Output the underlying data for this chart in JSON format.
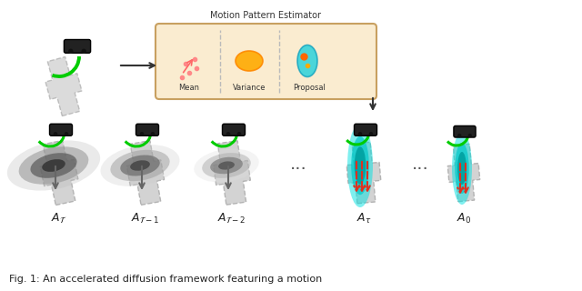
{
  "title": "Motion Pattern Estimator",
  "caption": "Fig. 1: An accelerated diffusion framework featuring a motion",
  "labels_bottom": [
    "$A_{\\mathcal{T}}$",
    "$A_{\\mathcal{T}-1}$",
    "$A_{\\mathcal{T}-2}$",
    "$A_{\\tau}$",
    "$A_0$"
  ],
  "estimator_labels": [
    "Mean",
    "Variance",
    "Proposal"
  ],
  "bg_color": "#ffffff",
  "box_color": "#f5deb3",
  "box_edge": "#c8a060",
  "road_color": "#cccccc",
  "road_edge": "#aaaaaa",
  "arrow_color_gray": "#888888",
  "arrow_color_red": "#e03020",
  "teal_color": "#00c8c8",
  "green_arc": "#00cc00"
}
